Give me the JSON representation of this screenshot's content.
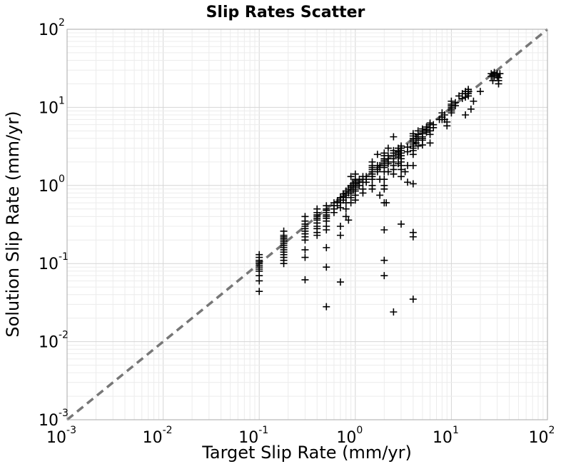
{
  "chart_data": {
    "type": "scatter",
    "title": "Slip Rates Scatter",
    "xlabel": "Target Slip Rate (mm/yr)",
    "ylabel": "Solution Slip Rate (mm/yr)",
    "xscale": "log",
    "yscale": "log",
    "xlim": [
      0.001,
      100
    ],
    "ylim": [
      0.001,
      100
    ],
    "grid": true,
    "legend": "none",
    "marker": "plus",
    "marker_color": "#000000",
    "reference_line": {
      "style": "dashed",
      "color": "#777777",
      "x": [
        0.001,
        100
      ],
      "y": [
        0.001,
        100
      ]
    },
    "x_ticks": [
      {
        "base": "10",
        "exp": "-3"
      },
      {
        "base": "10",
        "exp": "-2"
      },
      {
        "base": "10",
        "exp": "-1"
      },
      {
        "base": "10",
        "exp": "0"
      },
      {
        "base": "10",
        "exp": "1"
      },
      {
        "base": "10",
        "exp": "2"
      }
    ],
    "y_ticks": [
      {
        "base": "10",
        "exp": "-3"
      },
      {
        "base": "10",
        "exp": "-2"
      },
      {
        "base": "10",
        "exp": "-1"
      },
      {
        "base": "10",
        "exp": "0"
      },
      {
        "base": "10",
        "exp": "1"
      },
      {
        "base": "10",
        "exp": "2"
      }
    ],
    "points": [
      [
        0.1,
        0.06
      ],
      [
        0.1,
        0.07
      ],
      [
        0.1,
        0.08
      ],
      [
        0.1,
        0.085
      ],
      [
        0.1,
        0.09
      ],
      [
        0.1,
        0.095
      ],
      [
        0.1,
        0.1
      ],
      [
        0.1,
        0.105
      ],
      [
        0.1,
        0.11
      ],
      [
        0.1,
        0.12
      ],
      [
        0.1,
        0.13
      ],
      [
        0.1,
        0.044
      ],
      [
        0.18,
        0.12
      ],
      [
        0.18,
        0.13
      ],
      [
        0.18,
        0.14
      ],
      [
        0.18,
        0.15
      ],
      [
        0.18,
        0.16
      ],
      [
        0.18,
        0.17
      ],
      [
        0.18,
        0.18
      ],
      [
        0.18,
        0.19
      ],
      [
        0.18,
        0.2
      ],
      [
        0.18,
        0.21
      ],
      [
        0.18,
        0.22
      ],
      [
        0.18,
        0.23
      ],
      [
        0.18,
        0.26
      ],
      [
        0.18,
        0.11
      ],
      [
        0.18,
        0.1
      ],
      [
        0.3,
        0.2
      ],
      [
        0.3,
        0.22
      ],
      [
        0.3,
        0.24
      ],
      [
        0.3,
        0.26
      ],
      [
        0.3,
        0.28
      ],
      [
        0.3,
        0.3
      ],
      [
        0.3,
        0.32
      ],
      [
        0.3,
        0.35
      ],
      [
        0.3,
        0.4
      ],
      [
        0.3,
        0.15
      ],
      [
        0.3,
        0.12
      ],
      [
        0.3,
        0.062
      ],
      [
        0.4,
        0.28
      ],
      [
        0.4,
        0.3
      ],
      [
        0.4,
        0.33
      ],
      [
        0.4,
        0.36
      ],
      [
        0.4,
        0.38
      ],
      [
        0.4,
        0.4
      ],
      [
        0.4,
        0.42
      ],
      [
        0.4,
        0.45
      ],
      [
        0.4,
        0.5
      ],
      [
        0.4,
        0.25
      ],
      [
        0.4,
        0.23
      ],
      [
        0.5,
        0.35
      ],
      [
        0.5,
        0.38
      ],
      [
        0.5,
        0.4
      ],
      [
        0.5,
        0.42
      ],
      [
        0.5,
        0.45
      ],
      [
        0.5,
        0.48
      ],
      [
        0.5,
        0.5
      ],
      [
        0.5,
        0.55
      ],
      [
        0.5,
        0.3
      ],
      [
        0.5,
        0.27
      ],
      [
        0.5,
        0.16
      ],
      [
        0.5,
        0.09
      ],
      [
        0.5,
        0.028
      ],
      [
        0.6,
        0.5
      ],
      [
        0.6,
        0.55
      ],
      [
        0.6,
        0.6
      ],
      [
        0.6,
        0.45
      ],
      [
        0.65,
        0.55
      ],
      [
        0.65,
        0.62
      ],
      [
        0.7,
        0.6
      ],
      [
        0.7,
        0.65
      ],
      [
        0.7,
        0.7
      ],
      [
        0.7,
        0.52
      ],
      [
        0.7,
        0.3
      ],
      [
        0.7,
        0.23
      ],
      [
        0.7,
        0.058
      ],
      [
        0.75,
        0.65
      ],
      [
        0.75,
        0.72
      ],
      [
        0.75,
        0.78
      ],
      [
        0.8,
        0.7
      ],
      [
        0.8,
        0.75
      ],
      [
        0.8,
        0.8
      ],
      [
        0.8,
        0.85
      ],
      [
        0.8,
        0.6
      ],
      [
        0.8,
        0.5
      ],
      [
        0.8,
        0.4
      ],
      [
        0.85,
        0.8
      ],
      [
        0.85,
        0.9
      ],
      [
        0.85,
        0.36
      ],
      [
        0.9,
        0.8
      ],
      [
        0.9,
        0.85
      ],
      [
        0.9,
        0.9
      ],
      [
        0.9,
        0.95
      ],
      [
        0.9,
        1.0
      ],
      [
        0.9,
        0.7
      ],
      [
        0.9,
        0.6
      ],
      [
        0.9,
        1.3
      ],
      [
        0.95,
        0.9
      ],
      [
        0.95,
        1.0
      ],
      [
        0.95,
        1.05
      ],
      [
        1.0,
        0.85
      ],
      [
        1.0,
        0.9
      ],
      [
        1.0,
        0.95
      ],
      [
        1.0,
        1.0
      ],
      [
        1.0,
        1.05
      ],
      [
        1.0,
        1.1
      ],
      [
        1.0,
        1.15
      ],
      [
        1.0,
        1.2
      ],
      [
        1.0,
        0.75
      ],
      [
        1.0,
        0.65
      ],
      [
        1.0,
        1.4
      ],
      [
        1.1,
        1.0
      ],
      [
        1.1,
        1.1
      ],
      [
        1.1,
        1.2
      ],
      [
        1.2,
        1.1
      ],
      [
        1.2,
        1.2
      ],
      [
        1.2,
        1.3
      ],
      [
        1.2,
        0.9
      ],
      [
        1.2,
        0.8
      ],
      [
        1.3,
        1.2
      ],
      [
        1.3,
        1.3
      ],
      [
        1.3,
        1.1
      ],
      [
        1.5,
        1.2
      ],
      [
        1.5,
        1.3
      ],
      [
        1.5,
        1.4
      ],
      [
        1.5,
        1.5
      ],
      [
        1.5,
        1.6
      ],
      [
        1.5,
        1.7
      ],
      [
        1.5,
        1.8
      ],
      [
        1.5,
        1.0
      ],
      [
        1.5,
        0.9
      ],
      [
        1.5,
        2.0
      ],
      [
        1.7,
        1.5
      ],
      [
        1.7,
        1.6
      ],
      [
        1.7,
        1.8
      ],
      [
        1.7,
        2.5
      ],
      [
        1.8,
        1.7
      ],
      [
        1.8,
        1.8
      ],
      [
        1.8,
        1.2
      ],
      [
        1.8,
        0.75
      ],
      [
        2.0,
        1.5
      ],
      [
        2.0,
        1.7
      ],
      [
        2.0,
        1.8
      ],
      [
        2.0,
        1.9
      ],
      [
        2.0,
        2.0
      ],
      [
        2.0,
        2.1
      ],
      [
        2.0,
        2.2
      ],
      [
        2.0,
        2.4
      ],
      [
        2.0,
        2.6
      ],
      [
        2.0,
        1.2
      ],
      [
        2.0,
        1.0
      ],
      [
        2.0,
        0.9
      ],
      [
        2.0,
        0.6
      ],
      [
        2.0,
        0.27
      ],
      [
        2.0,
        0.11
      ],
      [
        2.0,
        0.07
      ],
      [
        2.1,
        0.6
      ],
      [
        2.2,
        1.9
      ],
      [
        2.2,
        2.0
      ],
      [
        2.2,
        2.2
      ],
      [
        2.2,
        2.4
      ],
      [
        2.2,
        1.5
      ],
      [
        2.2,
        3.0
      ],
      [
        2.5,
        2.0
      ],
      [
        2.5,
        2.2
      ],
      [
        2.5,
        2.4
      ],
      [
        2.5,
        2.6
      ],
      [
        2.5,
        2.8
      ],
      [
        2.5,
        1.8
      ],
      [
        2.5,
        1.6
      ],
      [
        2.5,
        1.4
      ],
      [
        2.5,
        4.2
      ],
      [
        2.5,
        0.024
      ],
      [
        2.8,
        2.3
      ],
      [
        2.8,
        2.5
      ],
      [
        2.8,
        2.7
      ],
      [
        2.8,
        3.0
      ],
      [
        2.8,
        1.9
      ],
      [
        3.0,
        2.2
      ],
      [
        3.0,
        2.4
      ],
      [
        3.0,
        2.6
      ],
      [
        3.0,
        2.8
      ],
      [
        3.0,
        3.0
      ],
      [
        3.0,
        3.2
      ],
      [
        3.0,
        2.0
      ],
      [
        3.0,
        1.6
      ],
      [
        3.0,
        1.8
      ],
      [
        3.0,
        1.3
      ],
      [
        3.0,
        0.32
      ],
      [
        3.3,
        1.5
      ],
      [
        3.5,
        1.8
      ],
      [
        3.5,
        3.1
      ],
      [
        3.5,
        2.7
      ],
      [
        3.5,
        1.1
      ],
      [
        4.0,
        2.8
      ],
      [
        4.0,
        3.0
      ],
      [
        4.0,
        3.2
      ],
      [
        4.0,
        3.4
      ],
      [
        4.0,
        3.6
      ],
      [
        4.0,
        3.8
      ],
      [
        4.0,
        4.0
      ],
      [
        4.0,
        4.3
      ],
      [
        4.0,
        4.6
      ],
      [
        4.0,
        2.5
      ],
      [
        4.0,
        1.8
      ],
      [
        4.0,
        1.05
      ],
      [
        4.0,
        0.25
      ],
      [
        4.0,
        0.22
      ],
      [
        4.0,
        0.035
      ],
      [
        4.3,
        3.5
      ],
      [
        4.3,
        4.0
      ],
      [
        4.5,
        3.8
      ],
      [
        4.5,
        4.2
      ],
      [
        4.5,
        4.5
      ],
      [
        4.5,
        5.0
      ],
      [
        4.5,
        3.2
      ],
      [
        5.0,
        3.8
      ],
      [
        5.0,
        4.2
      ],
      [
        5.0,
        4.6
      ],
      [
        5.0,
        5.0
      ],
      [
        5.0,
        5.3
      ],
      [
        5.0,
        4.0
      ],
      [
        5.0,
        3.3
      ],
      [
        5.5,
        4.8
      ],
      [
        5.5,
        5.2
      ],
      [
        5.5,
        5.6
      ],
      [
        6.0,
        5.0
      ],
      [
        6.0,
        5.5
      ],
      [
        6.0,
        6.0
      ],
      [
        6.0,
        6.3
      ],
      [
        6.0,
        4.5
      ],
      [
        6.0,
        3.5
      ],
      [
        6.5,
        5.5
      ],
      [
        6.5,
        6.0
      ],
      [
        7.5,
        7.0
      ],
      [
        8.0,
        7.0
      ],
      [
        8.0,
        7.5
      ],
      [
        8.0,
        8.5
      ],
      [
        8.5,
        7.0
      ],
      [
        8.5,
        8.0
      ],
      [
        9.0,
        5.8
      ],
      [
        9.0,
        6.5
      ],
      [
        10.0,
        9.0
      ],
      [
        10.0,
        9.5
      ],
      [
        10.0,
        10.0
      ],
      [
        10.0,
        10.5
      ],
      [
        10.0,
        11.0
      ],
      [
        10.0,
        8.5
      ],
      [
        10.0,
        12.0
      ],
      [
        11.0,
        10.5
      ],
      [
        11.0,
        11.5
      ],
      [
        12.0,
        14.0
      ],
      [
        13.0,
        15.0
      ],
      [
        13.0,
        13.0
      ],
      [
        14.0,
        15.0
      ],
      [
        14.0,
        16.0
      ],
      [
        14.0,
        13.5
      ],
      [
        14.0,
        8.0
      ],
      [
        15.0,
        14.0
      ],
      [
        15.0,
        16.0
      ],
      [
        15.0,
        17.0
      ],
      [
        15.0,
        15.0
      ],
      [
        16.0,
        9.5
      ],
      [
        17.0,
        12.0
      ],
      [
        20.0,
        16.0
      ],
      [
        26.0,
        25.0
      ],
      [
        26.0,
        27.0
      ],
      [
        27.0,
        26.0
      ],
      [
        28.0,
        25.0
      ],
      [
        28.0,
        27.0
      ],
      [
        28.0,
        28.0
      ],
      [
        30.0,
        25.0
      ],
      [
        30.0,
        26.0
      ],
      [
        30.0,
        27.0
      ],
      [
        31.0,
        24.0
      ],
      [
        31.0,
        22.0
      ],
      [
        31.0,
        20.0
      ],
      [
        27.0,
        22.0
      ],
      [
        32.0,
        27.0
      ]
    ]
  }
}
